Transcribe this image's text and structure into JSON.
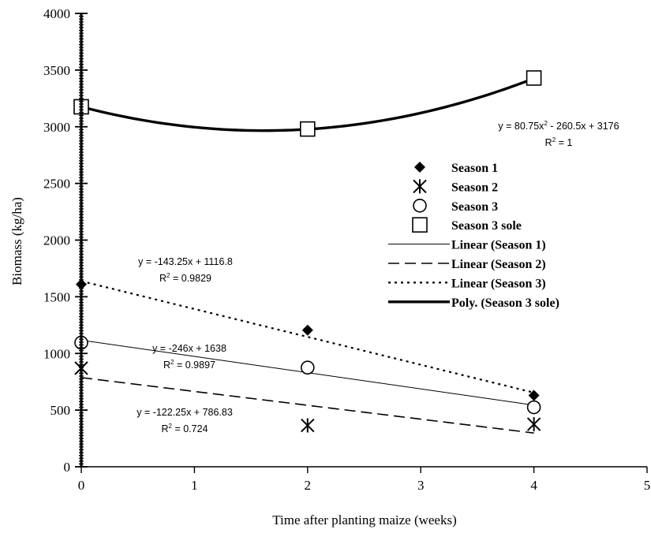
{
  "chart_data": {
    "type": "scatter",
    "xlabel": "Time after planting maize (weeks)",
    "ylabel": "Biomass (kg/ha)",
    "xlim": [
      0,
      5
    ],
    "ylim": [
      0,
      4000
    ],
    "x_ticks": [
      "0",
      "1",
      "2",
      "3",
      "4",
      "5"
    ],
    "y_ticks": [
      "0",
      "500",
      "1000",
      "1500",
      "2000",
      "2500",
      "3000",
      "3500",
      "4000"
    ],
    "grid": false,
    "legend_position": "right",
    "series": [
      {
        "name": "Season 1",
        "marker": "diamond",
        "x": [
          0,
          2,
          4
        ],
        "y": [
          1610,
          1205,
          630
        ]
      },
      {
        "name": "Season 2",
        "marker": "asterisk",
        "x": [
          0,
          2,
          4
        ],
        "y": [
          870,
          365,
          375
        ]
      },
      {
        "name": "Season 3",
        "marker": "circle",
        "x": [
          0,
          2,
          4
        ],
        "y": [
          1095,
          875,
          525
        ]
      },
      {
        "name": "Season 3 sole",
        "marker": "square",
        "x": [
          0,
          2,
          4
        ],
        "y": [
          3176,
          2980,
          3430
        ]
      }
    ],
    "trendlines": [
      {
        "name": "Linear (Season 1)",
        "style": "thin-solid",
        "slope": -143.25,
        "intercept": 1116.8,
        "x_range": [
          0,
          4
        ],
        "equation": "y = -143.25x + 1116.8",
        "r2_label": "R",
        "r2_value": " = 0.9829"
      },
      {
        "name": "Linear (Season 2)",
        "style": "dashed",
        "slope": -122.25,
        "intercept": 786.83,
        "x_range": [
          0,
          4
        ],
        "equation": "y = -122.25x + 786.83",
        "r2_label": "R",
        "r2_value": " = 0.724"
      },
      {
        "name": "Linear (Season 3)",
        "style": "dotted",
        "slope": -246,
        "intercept": 1638,
        "x_range": [
          0,
          4
        ],
        "equation": "y = -246x + 1638",
        "r2_label": "R",
        "r2_value": " = 0.9897"
      },
      {
        "name": "Poly. (Season 3 sole)",
        "style": "thick-solid",
        "coeffs": [
          80.75,
          -260.5,
          3176
        ],
        "x_range": [
          0,
          4
        ],
        "equation_part1": "y = 80.75x",
        "equation_part2": " - 260.5x + 3176",
        "r2_label": "R",
        "r2_value": " = 1"
      }
    ],
    "legend": [
      "Season 1",
      "Season 2",
      "Season 3",
      "Season 3 sole",
      "Linear (Season 1)",
      "Linear (Season 2)",
      "Linear (Season 3)",
      "Poly. (Season 3 sole)"
    ],
    "superscript": "2"
  }
}
